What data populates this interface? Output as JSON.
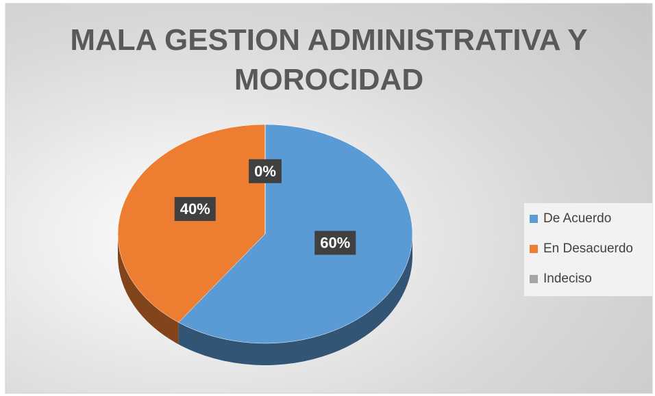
{
  "chart_data": {
    "type": "pie",
    "title": "MALA GESTION ADMINISTRATIVA Y MOROCIDAD",
    "categories": [
      "De Acuerdo",
      "En Desacuerdo",
      "Indeciso"
    ],
    "values": [
      60,
      40,
      0
    ],
    "value_labels": [
      "60%",
      "40%",
      "0%"
    ],
    "colors": [
      "#5b9bd5",
      "#ed7d31",
      "#a5a5a5"
    ],
    "legend": "right"
  }
}
